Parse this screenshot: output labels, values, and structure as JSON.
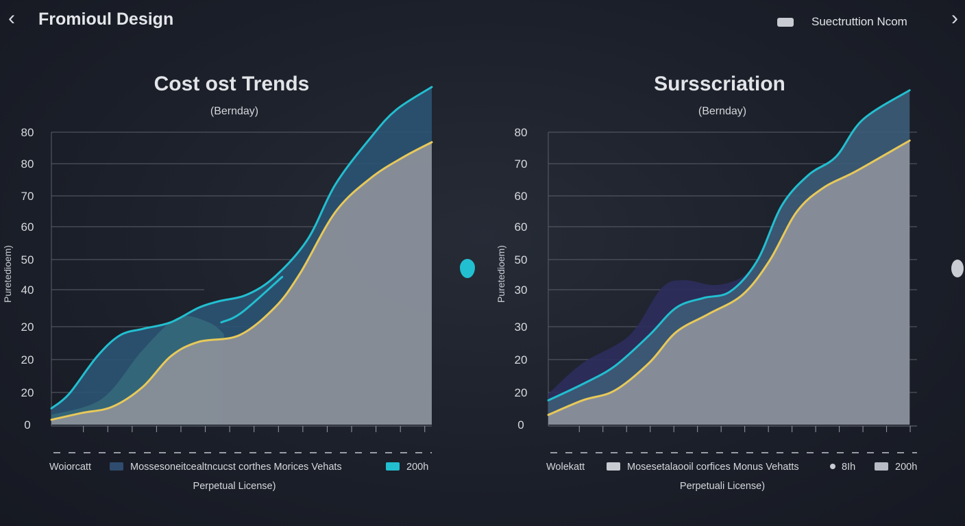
{
  "header": {
    "title": "Fromioul Design",
    "subscription_label": "Suectruttion Ncom",
    "back_icon": "chevron-left-icon",
    "forward_icon": "chevron-right-icon"
  },
  "colors": {
    "cyan": "#22bfd0",
    "yellow": "#e8c95a",
    "blue_fill": "#2b5474",
    "teal_fill": "#35687a",
    "navy_fill": "#2c2d5c",
    "gray_fill": "#8a8f99"
  },
  "chart_data": [
    {
      "type": "area",
      "title": "Cost ost Trends",
      "subtitle": "(Bernday)",
      "ylabel": "Puretedioem)",
      "xlabel": "Perpetual License)",
      "y_tick_labels": [
        "0",
        "20",
        "20",
        "20",
        "40",
        "50",
        "60",
        "70",
        "80",
        "80"
      ],
      "ylim": [
        0,
        10
      ],
      "xlim": [
        0,
        15
      ],
      "grid": true,
      "legend_position": "bottom",
      "legend": [
        {
          "label": "Woiorcatt",
          "swatch": "none"
        },
        {
          "label": "Mossesoneitcealtncucst corthes Morices Vehats",
          "swatch": "#2f4c6e"
        },
        {
          "label": "200h",
          "swatch": "#22bfd0"
        }
      ],
      "series": [
        {
          "color": "#22bfd0",
          "fill": "#2b5474",
          "x": [
            0,
            0.7,
            1.8,
            2.7,
            3.6,
            4.7,
            5.8,
            6.6,
            7.7,
            8.8,
            10.1,
            11.2,
            12.6,
            13.6,
            15
          ],
          "y": [
            0.5,
            0.95,
            2.1,
            2.75,
            2.95,
            3.15,
            3.6,
            3.8,
            4.0,
            4.55,
            5.7,
            7.4,
            8.85,
            9.7,
            10.4
          ]
        },
        {
          "color": "none",
          "fill": "#35687a",
          "x": [
            0,
            2,
            3.6,
            5,
            6.2,
            6.8
          ],
          "y": [
            0.3,
            0.8,
            2.3,
            3.3,
            3.15,
            2.8
          ]
        },
        {
          "color": "#e8c95a",
          "fill": "#8a8f99",
          "x": [
            0,
            1.2,
            2.4,
            3.6,
            4.7,
            5.8,
            7.4,
            8.8,
            9.8,
            11.2,
            12.6,
            13.9,
            15
          ],
          "y": [
            0.15,
            0.36,
            0.55,
            1.16,
            2.1,
            2.55,
            2.75,
            3.6,
            4.65,
            6.55,
            7.6,
            8.25,
            8.7
          ]
        },
        {
          "color": "#22bfd0",
          "fill": "none",
          "x": [
            6.7,
            7.5,
            9.1
          ],
          "y": [
            3.15,
            3.45,
            4.55
          ]
        }
      ]
    },
    {
      "type": "area",
      "title": "Sursscriation",
      "subtitle": "(Bernday)",
      "ylabel": "Puretedioem)",
      "xlabel": "Perpetuali License)",
      "y_tick_labels": [
        "0",
        "20",
        "20",
        "30",
        "30",
        "50",
        "60",
        "60",
        "70",
        "80"
      ],
      "ylim": [
        0,
        10
      ],
      "xlim": [
        0,
        15
      ],
      "grid": true,
      "legend_position": "bottom",
      "legend": [
        {
          "label": "Wolekatt",
          "swatch": "none"
        },
        {
          "label": "Mosesetalaooil corfices Monus Vehatts",
          "swatch": "#c8cbd1"
        },
        {
          "label": "8Ih",
          "swatch": "dot"
        },
        {
          "label": "200h",
          "swatch": "#b8bcc4"
        }
      ],
      "series": [
        {
          "color": "none",
          "fill": "#2c2d5c",
          "x": [
            0,
            1.4,
            3.3,
            4.6,
            5.5,
            6.8,
            7.9,
            8.5
          ],
          "y": [
            0.95,
            1.9,
            2.75,
            4.2,
            4.45,
            4.3,
            4.55,
            5.05
          ]
        },
        {
          "color": "#22bfd0",
          "fill": "#3d5c78",
          "x": [
            0,
            1.4,
            2.7,
            4.1,
            5.2,
            6.3,
            7.4,
            8.5,
            9.5,
            10.6,
            11.7,
            12.8,
            14.7
          ],
          "y": [
            0.75,
            1.25,
            1.8,
            2.75,
            3.6,
            3.9,
            4.1,
            5.05,
            6.75,
            7.7,
            8.25,
            9.4,
            10.3
          ]
        },
        {
          "color": "#e8c95a",
          "fill": "#8a8f99",
          "x": [
            0,
            1.4,
            2.7,
            4.1,
            5.2,
            6.5,
            7.9,
            9.0,
            10.1,
            11.2,
            12.5,
            14.7
          ],
          "y": [
            0.3,
            0.75,
            1.05,
            1.9,
            2.85,
            3.4,
            4.0,
            5.05,
            6.55,
            7.3,
            7.8,
            8.75
          ]
        }
      ]
    }
  ]
}
